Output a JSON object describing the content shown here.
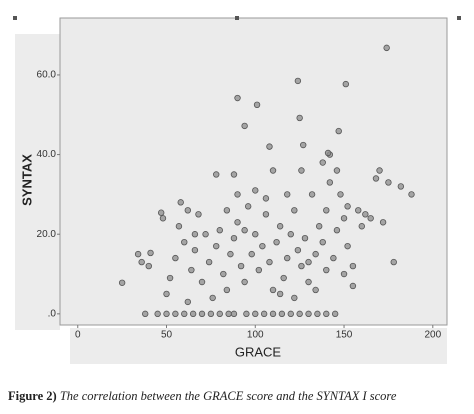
{
  "chart_data": {
    "type": "scatter",
    "x_label": "GRACE",
    "y_label": "SYNTAX",
    "xlim": [
      -10,
      208
    ],
    "ylim": [
      -2.8,
      74.3
    ],
    "xticks": [
      0,
      50,
      100,
      150,
      200
    ],
    "yticks": [
      {
        "value": 0,
        "label": ".0"
      },
      {
        "value": 20,
        "label": "20.0"
      },
      {
        "value": 40,
        "label": "40.0"
      },
      {
        "value": 60,
        "label": "60.0"
      }
    ],
    "color": "#8c8c8c",
    "x": [
      25,
      41,
      47,
      40,
      38,
      45,
      50,
      55,
      60,
      65,
      70,
      75,
      80,
      85,
      88,
      95,
      100,
      105,
      110,
      115,
      120,
      125,
      130,
      135,
      140,
      145,
      50,
      52,
      55,
      57,
      60,
      62,
      64,
      66,
      68,
      70,
      72,
      74,
      76,
      78,
      80,
      82,
      84,
      86,
      88,
      90,
      92,
      94,
      96,
      98,
      100,
      102,
      104,
      106,
      108,
      110,
      112,
      114,
      116,
      118,
      120,
      122,
      124,
      126,
      128,
      130,
      132,
      134,
      136,
      138,
      140,
      142,
      144,
      146,
      148,
      150,
      152,
      155,
      158,
      160,
      162,
      165,
      168,
      170,
      172,
      175,
      178,
      182,
      188,
      34,
      36,
      48,
      58,
      62,
      66,
      78,
      84,
      90,
      94,
      100,
      106,
      110,
      114,
      118,
      122,
      126,
      130,
      134,
      138,
      140,
      142,
      146,
      150,
      152,
      155,
      174,
      124,
      151,
      90,
      101,
      125,
      94,
      147,
      127,
      141,
      88,
      108
    ],
    "values": [
      7.8,
      15.3,
      25.4,
      12,
      0,
      0,
      0,
      0,
      0,
      0,
      0,
      0,
      0,
      0,
      0,
      0,
      0,
      0,
      0,
      0,
      0,
      0,
      0,
      0,
      0,
      0,
      5,
      9,
      14,
      22,
      18,
      3,
      11,
      16,
      25,
      8,
      20,
      13,
      4,
      17,
      21,
      10,
      6,
      15,
      19,
      23,
      12,
      8,
      27,
      15,
      20,
      11,
      17,
      25,
      13,
      6,
      18,
      22,
      9,
      14,
      20,
      26,
      16,
      12,
      19,
      8,
      30,
      15,
      22,
      18,
      26,
      33,
      14,
      21,
      30,
      24,
      17,
      12,
      26,
      22,
      25,
      24,
      34,
      36,
      23,
      33,
      13,
      32,
      30,
      15,
      13,
      24,
      28,
      26,
      20,
      35,
      26,
      30,
      21,
      31,
      29,
      36,
      5,
      30,
      4,
      36,
      13,
      6,
      38,
      11,
      40,
      36,
      10,
      27,
      7,
      66.8,
      58.5,
      57.7,
      54.2,
      52.5,
      49.2,
      47.2,
      45.9,
      42.4,
      40.4,
      35,
      42
    ]
  },
  "caption": {
    "label": "Figure 2)",
    "text": " The correlation between the GRACE score and the SYNTAX I score"
  }
}
